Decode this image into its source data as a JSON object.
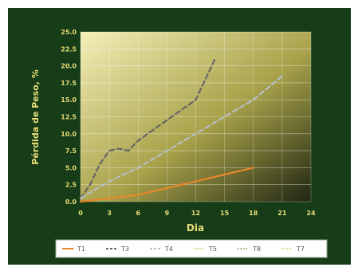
{
  "chart_data": {
    "type": "line",
    "title": "",
    "xlabel": "Dia",
    "ylabel": "Pérdida de Peso, %",
    "xlim": [
      0,
      24
    ],
    "ylim": [
      0,
      25
    ],
    "x_ticks": [
      0,
      3,
      6,
      9,
      12,
      15,
      18,
      21,
      24
    ],
    "y_ticks": [
      "0.0",
      "2.5",
      "5.0",
      "7.5",
      "10.0",
      "12.5",
      "15.0",
      "17.5",
      "20.0",
      "22.5",
      "25.0"
    ],
    "grid": true,
    "legend_position": "bottom",
    "series": [
      {
        "name": "T1",
        "color": "#e8882a",
        "dash": "solid",
        "x": [
          0,
          3,
          6,
          9,
          12,
          15,
          18
        ],
        "y": [
          0,
          0.5,
          1.0,
          2.0,
          3.0,
          4.0,
          5.0
        ]
      },
      {
        "name": "T3",
        "color": "#666666",
        "dash": "dashed",
        "x": [
          0,
          1,
          2,
          3,
          4,
          5,
          6,
          9,
          12,
          14
        ],
        "y": [
          0.5,
          2.5,
          5.5,
          7.5,
          7.8,
          7.5,
          9.0,
          12.0,
          15.0,
          21.0
        ]
      },
      {
        "name": "T4",
        "color": "#b8bfc6",
        "dash": "dashed",
        "x": [
          0,
          3,
          6,
          9,
          12,
          15,
          18,
          21
        ],
        "y": [
          0.5,
          3.0,
          5.0,
          7.5,
          10.0,
          12.5,
          15.0,
          18.5
        ]
      },
      {
        "name": "T5",
        "color": "#c9cf7a",
        "dash": "dotted",
        "x": [],
        "y": []
      },
      {
        "name": "T8",
        "color": "#9aa86a",
        "dash": "dotted",
        "x": [],
        "y": []
      },
      {
        "name": "T7",
        "color": "#d8d27a",
        "dash": "dotted",
        "x": [],
        "y": []
      }
    ]
  }
}
